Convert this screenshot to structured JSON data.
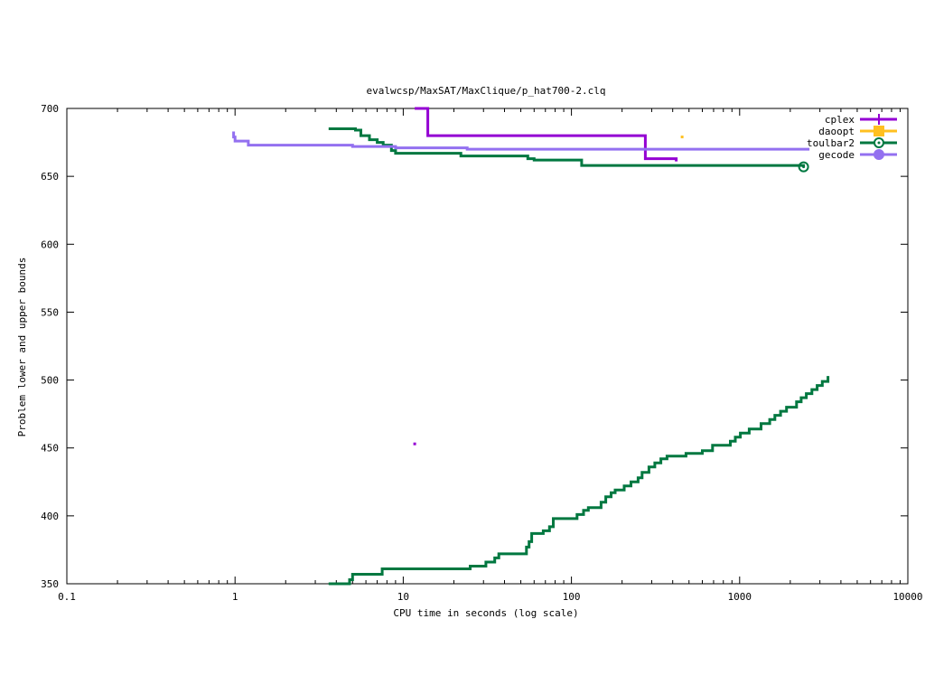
{
  "chart_data": {
    "type": "line",
    "title": "evalwcsp/MaxSAT/MaxClique/p_hat700-2.clq",
    "xlabel": "CPU time in seconds (log scale)",
    "ylabel": "Problem lower and upper bounds",
    "xscale": "log",
    "xlim": [
      0.1,
      10000
    ],
    "ylim": [
      350,
      700
    ],
    "xticks": [
      0.1,
      1,
      10,
      100,
      1000,
      10000
    ],
    "xtick_labels": [
      "0.1",
      "1",
      "10",
      "100",
      "1000",
      "10000"
    ],
    "yticks": [
      350,
      400,
      450,
      500,
      550,
      600,
      650,
      700
    ],
    "ytick_labels": [
      "350",
      "400",
      "450",
      "500",
      "550",
      "600",
      "650",
      "700"
    ],
    "grid": false,
    "legend_position": "top-right",
    "series": [
      {
        "name": "cplex",
        "color": "#9400d3",
        "marker": "plus",
        "upper": [
          [
            11.7,
            700
          ],
          [
            14,
            700
          ],
          [
            14,
            680
          ],
          [
            275,
            680
          ],
          [
            275,
            663
          ],
          [
            420,
            663
          ],
          [
            420,
            661
          ]
        ],
        "points": [
          [
            11.7,
            453
          ]
        ]
      },
      {
        "name": "daoopt",
        "color": "#ffc020",
        "marker": "square",
        "upper": [],
        "points": [
          [
            455,
            679
          ]
        ]
      },
      {
        "name": "toulbar2",
        "color": "#007840",
        "marker": "circle",
        "end_marker": [
          2400,
          657
        ],
        "upper": [
          [
            3.6,
            685
          ],
          [
            5.2,
            685
          ],
          [
            5.2,
            684
          ],
          [
            5.6,
            684
          ],
          [
            5.6,
            680
          ],
          [
            6.3,
            680
          ],
          [
            6.3,
            677
          ],
          [
            7.0,
            677
          ],
          [
            7.0,
            675
          ],
          [
            7.6,
            675
          ],
          [
            7.6,
            673
          ],
          [
            8.5,
            673
          ],
          [
            8.5,
            669
          ],
          [
            9.0,
            669
          ],
          [
            9.0,
            667
          ],
          [
            22,
            667
          ],
          [
            22,
            665
          ],
          [
            55,
            665
          ],
          [
            55,
            663
          ],
          [
            60,
            663
          ],
          [
            60,
            662
          ],
          [
            115,
            662
          ],
          [
            115,
            658
          ],
          [
            2400,
            658
          ],
          [
            2400,
            657
          ]
        ],
        "lower": [
          [
            3.6,
            350
          ],
          [
            4.8,
            350
          ],
          [
            4.8,
            353
          ],
          [
            5.0,
            353
          ],
          [
            5.0,
            357
          ],
          [
            7.5,
            357
          ],
          [
            7.5,
            361
          ],
          [
            25,
            361
          ],
          [
            25,
            363
          ],
          [
            31,
            363
          ],
          [
            31,
            366
          ],
          [
            35,
            366
          ],
          [
            35,
            369
          ],
          [
            37,
            369
          ],
          [
            37,
            372
          ],
          [
            54,
            372
          ],
          [
            54,
            377
          ],
          [
            56,
            377
          ],
          [
            56,
            381
          ],
          [
            58,
            381
          ],
          [
            58,
            387
          ],
          [
            68,
            387
          ],
          [
            68,
            389
          ],
          [
            74,
            389
          ],
          [
            74,
            392
          ],
          [
            78,
            392
          ],
          [
            78,
            398
          ],
          [
            108,
            398
          ],
          [
            108,
            401
          ],
          [
            118,
            401
          ],
          [
            118,
            404
          ],
          [
            126,
            404
          ],
          [
            126,
            406
          ],
          [
            150,
            406
          ],
          [
            150,
            410
          ],
          [
            160,
            410
          ],
          [
            160,
            414
          ],
          [
            172,
            414
          ],
          [
            172,
            417
          ],
          [
            182,
            417
          ],
          [
            182,
            419
          ],
          [
            206,
            419
          ],
          [
            206,
            422
          ],
          [
            226,
            422
          ],
          [
            226,
            425
          ],
          [
            249,
            425
          ],
          [
            249,
            428
          ],
          [
            263,
            428
          ],
          [
            263,
            432
          ],
          [
            289,
            432
          ],
          [
            289,
            436
          ],
          [
            313,
            436
          ],
          [
            313,
            439
          ],
          [
            340,
            439
          ],
          [
            340,
            442
          ],
          [
            370,
            442
          ],
          [
            370,
            444
          ],
          [
            480,
            444
          ],
          [
            480,
            446
          ],
          [
            600,
            446
          ],
          [
            600,
            448
          ],
          [
            690,
            448
          ],
          [
            690,
            452
          ],
          [
            880,
            452
          ],
          [
            880,
            455
          ],
          [
            942,
            455
          ],
          [
            942,
            458
          ],
          [
            1010,
            458
          ],
          [
            1010,
            461
          ],
          [
            1140,
            461
          ],
          [
            1140,
            464
          ],
          [
            1340,
            464
          ],
          [
            1340,
            468
          ],
          [
            1510,
            468
          ],
          [
            1510,
            471
          ],
          [
            1620,
            471
          ],
          [
            1620,
            474
          ],
          [
            1750,
            474
          ],
          [
            1750,
            477
          ],
          [
            1900,
            477
          ],
          [
            1900,
            480
          ],
          [
            2180,
            480
          ],
          [
            2180,
            484
          ],
          [
            2320,
            484
          ],
          [
            2320,
            487
          ],
          [
            2490,
            487
          ],
          [
            2490,
            490
          ],
          [
            2690,
            490
          ],
          [
            2690,
            493
          ],
          [
            2890,
            493
          ],
          [
            2890,
            496
          ],
          [
            3100,
            496
          ],
          [
            3100,
            499
          ],
          [
            3350,
            499
          ],
          [
            3350,
            503
          ]
        ]
      },
      {
        "name": "gecode",
        "color": "#9370f0",
        "marker": "circle-filled",
        "upper": [
          [
            0.98,
            683
          ],
          [
            0.98,
            679
          ],
          [
            1.0,
            679
          ],
          [
            1.0,
            676
          ],
          [
            1.2,
            676
          ],
          [
            1.2,
            673
          ],
          [
            5.0,
            673
          ],
          [
            5.0,
            672
          ],
          [
            9.0,
            672
          ],
          [
            9.0,
            671
          ],
          [
            24,
            671
          ],
          [
            24,
            670
          ],
          [
            2600,
            670
          ]
        ]
      }
    ]
  }
}
